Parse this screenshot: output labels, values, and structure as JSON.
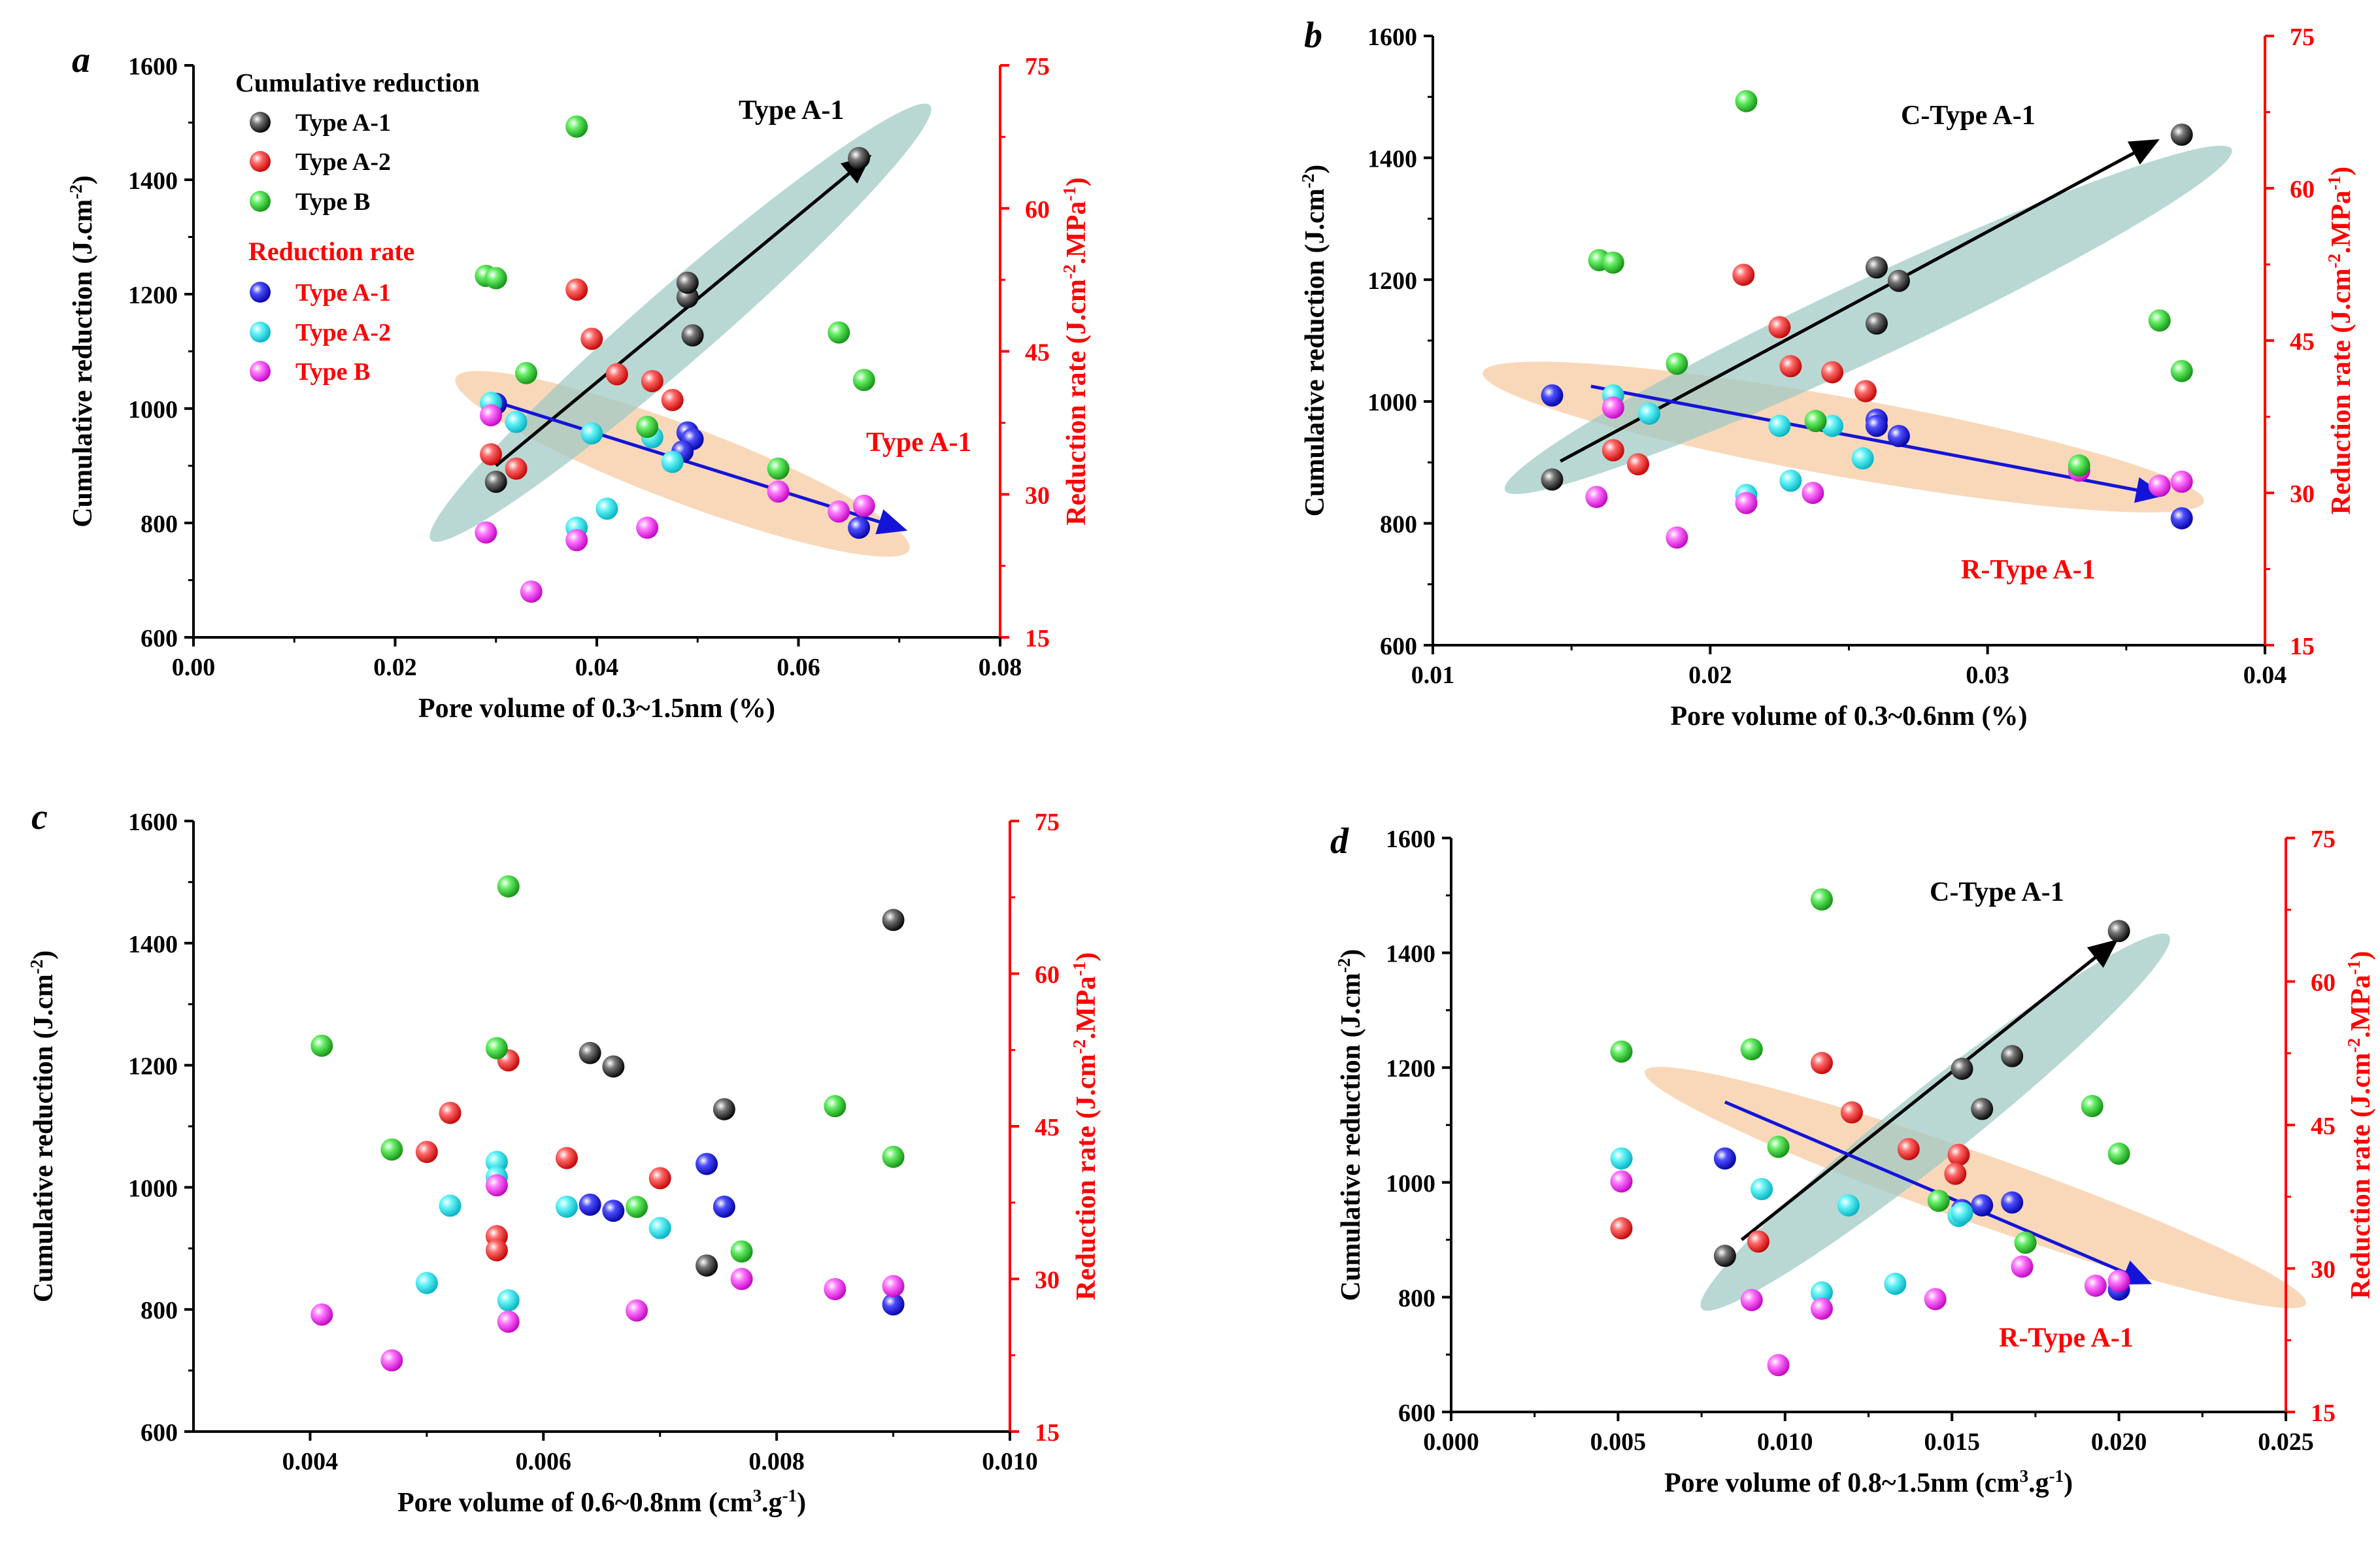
{
  "colors": {
    "typeA1": "#0a0a0a",
    "typeA2": "#ff1a1a",
    "typeB": "#22dd22",
    "rateA1": "#1010e0",
    "rateA2": "#12e8f0",
    "rateB": "#ff22ff",
    "right_axis": "#ff0000",
    "ellipse_c": "#9ec9c4",
    "ellipse_r": "#f6c9a0",
    "arrow_c": "#000000",
    "arrow_r": "#1414d8"
  },
  "legend": {
    "cumulative_title": "Cumulative reduction",
    "rate_title": "Reduction rate",
    "items": [
      "Type A-1",
      "Type A-2",
      "Type B",
      "Type A-1",
      "Type A-2",
      "Type B"
    ]
  },
  "chart_data": [
    {
      "type": "scatter",
      "panel": "a",
      "xlabel": "Pore volume of 0.3~1.5nm (%)",
      "ylabel": "Cumulative reduction (J.cm-2)",
      "ylabel2": "Reduction rate (J.cm-2.MPa-1)",
      "xlim": [
        0.0,
        0.08
      ],
      "xticks": [
        "0.00",
        "0.02",
        "0.04",
        "0.06",
        "0.08"
      ],
      "ylim": [
        600,
        1600
      ],
      "yticks": [
        600,
        800,
        1000,
        1200,
        1400,
        1600
      ],
      "y2lim": [
        15,
        75
      ],
      "y2ticks": [
        15,
        30,
        45,
        60,
        75
      ],
      "annotations": [
        {
          "text": "Type A-1",
          "color": "#000000"
        },
        {
          "text": "Type A-1",
          "color": "#ff0000"
        }
      ],
      "cumulative_series": [
        {
          "name": "Type A-1",
          "points": [
            [
              0.03,
              872
            ],
            [
              0.049,
              1195
            ],
            [
              0.049,
              1220
            ],
            [
              0.0495,
              1128
            ],
            [
              0.066,
              1438
            ]
          ]
        },
        {
          "name": "Type A-2",
          "points": [
            [
              0.0295,
              920
            ],
            [
              0.032,
              895
            ],
            [
              0.038,
              1208
            ],
            [
              0.0395,
              1122
            ],
            [
              0.042,
              1060
            ],
            [
              0.0455,
              1048
            ],
            [
              0.0475,
              1015
            ]
          ]
        },
        {
          "name": "Type B",
          "points": [
            [
              0.029,
              1232
            ],
            [
              0.03,
              1228
            ],
            [
              0.038,
              1493
            ],
            [
              0.033,
              1062
            ],
            [
              0.045,
              968
            ],
            [
              0.058,
              895
            ],
            [
              0.064,
              1133
            ],
            [
              0.0665,
              1050
            ]
          ]
        }
      ],
      "rate_series": [
        {
          "name": "Type A-1",
          "points": [
            [
              0.03,
              39.5
            ],
            [
              0.049,
              36.5
            ],
            [
              0.0495,
              35.8
            ],
            [
              0.0485,
              34.5
            ],
            [
              0.066,
              26.5
            ]
          ]
        },
        {
          "name": "Type A-2",
          "points": [
            [
              0.0295,
              39.6
            ],
            [
              0.032,
              37.6
            ],
            [
              0.0395,
              36.4
            ],
            [
              0.0455,
              36.0
            ],
            [
              0.0475,
              33.4
            ],
            [
              0.038,
              26.5
            ],
            [
              0.041,
              28.5
            ]
          ]
        },
        {
          "name": "Type B",
          "points": [
            [
              0.0295,
              38.3
            ],
            [
              0.029,
              26.0
            ],
            [
              0.0335,
              19.8
            ],
            [
              0.038,
              25.2
            ],
            [
              0.045,
              26.5
            ],
            [
              0.058,
              30.3
            ],
            [
              0.064,
              28.2
            ],
            [
              0.0665,
              28.8
            ]
          ]
        }
      ],
      "trend_c": {
        "from": [
          0.03,
          900
        ],
        "to": [
          0.067,
          1440
        ]
      },
      "trend_r": {
        "from": [
          0.03,
          39.7
        ],
        "to": [
          0.0705,
          26.3
        ]
      },
      "ellipse_c": {
        "cx": 0.0483,
        "cy": 1150,
        "rx": 0.04,
        "ry": 65,
        "angle_from": [
          0.0232,
          770
        ],
        "angle_to": [
          0.0727,
          1530
        ]
      },
      "ellipse_r": {
        "cx": 0.0485,
        "cy": 33.2,
        "rx": 0.028,
        "ry": 4.0,
        "angle_from": [
          0.026,
          42.0
        ],
        "angle_to": [
          0.071,
          24.0
        ]
      }
    },
    {
      "type": "scatter",
      "panel": "b",
      "xlabel": "Pore volume of 0.3~0.6nm (%)",
      "ylabel": "Cumulative reduction (J.cm-2)",
      "ylabel2": "Reduction rate (J.cm-2.MPa-1)",
      "xlim": [
        0.01,
        0.04
      ],
      "xticks": [
        "0.01",
        "0.02",
        "0.03",
        "0.04"
      ],
      "ylim": [
        600,
        1600
      ],
      "yticks": [
        600,
        800,
        1000,
        1200,
        1400,
        1600
      ],
      "y2lim": [
        15,
        75
      ],
      "y2ticks": [
        15,
        30,
        45,
        60,
        75
      ],
      "annotations": [
        {
          "text": "C-Type A-1",
          "color": "#000000"
        },
        {
          "text": "R-Type A-1",
          "color": "#ff0000"
        }
      ],
      "cumulative_series": [
        {
          "name": "Type A-1",
          "points": [
            [
              0.0143,
              872
            ],
            [
              0.026,
              1220
            ],
            [
              0.0268,
              1198
            ],
            [
              0.026,
              1128
            ],
            [
              0.037,
              1438
            ]
          ]
        },
        {
          "name": "Type A-2",
          "points": [
            [
              0.0165,
              920
            ],
            [
              0.0174,
              897
            ],
            [
              0.0212,
              1208
            ],
            [
              0.0225,
              1122
            ],
            [
              0.0229,
              1058
            ],
            [
              0.0244,
              1048
            ],
            [
              0.0256,
              1017
            ]
          ]
        },
        {
          "name": "Type B",
          "points": [
            [
              0.016,
              1232
            ],
            [
              0.0165,
              1228
            ],
            [
              0.0213,
              1493
            ],
            [
              0.0188,
              1062
            ],
            [
              0.0238,
              968
            ],
            [
              0.0333,
              895
            ],
            [
              0.0362,
              1133
            ],
            [
              0.037,
              1050
            ]
          ]
        }
      ],
      "rate_series": [
        {
          "name": "Type A-1",
          "points": [
            [
              0.0143,
              39.6
            ],
            [
              0.026,
              37.2
            ],
            [
              0.026,
              36.6
            ],
            [
              0.0268,
              35.6
            ],
            [
              0.037,
              27.5
            ]
          ]
        },
        {
          "name": "Type A-2",
          "points": [
            [
              0.0165,
              39.6
            ],
            [
              0.0178,
              37.8
            ],
            [
              0.0225,
              36.6
            ],
            [
              0.0244,
              36.6
            ],
            [
              0.0255,
              33.4
            ],
            [
              0.0213,
              29.8
            ],
            [
              0.0229,
              31.2
            ]
          ]
        },
        {
          "name": "Type B",
          "points": [
            [
              0.0165,
              38.4
            ],
            [
              0.0159,
              29.6
            ],
            [
              0.0188,
              25.6
            ],
            [
              0.0213,
              29.0
            ],
            [
              0.0237,
              30.0
            ],
            [
              0.0333,
              32.2
            ],
            [
              0.0362,
              30.7
            ],
            [
              0.037,
              31.1
            ]
          ]
        }
      ],
      "trend_c": {
        "from": [
          0.0146,
          902
        ],
        "to": [
          0.0361,
          1428
        ]
      },
      "trend_r": {
        "from": [
          0.0157,
          40.5
        ],
        "to": [
          0.0363,
          29.8
        ]
      },
      "ellipse_c": {
        "cx": 0.0257,
        "cy": 1134,
        "rx": 0.0158,
        "ry": 64,
        "angle_from": [
          0.0123,
          870
        ],
        "angle_to": [
          0.0385,
          1430
        ]
      },
      "ellipse_r": {
        "cx": 0.0248,
        "cy": 35.5,
        "rx": 0.0152,
        "ry": 3.9,
        "angle_from": [
          0.012,
          41.5
        ],
        "angle_to": [
          0.038,
          28.8
        ]
      }
    },
    {
      "type": "scatter",
      "panel": "c",
      "xlabel": "Pore volume of 0.6~0.8nm (cm3.g-1)",
      "ylabel": "Cumulative reduction (J.cm-2)",
      "ylabel2": "Reduction rate (J.cm-2.MPa-1)",
      "xlim": [
        0.003,
        0.01
      ],
      "xticks": [
        "0.004",
        "0.006",
        "0.008",
        "0.010"
      ],
      "ylim": [
        600,
        1600
      ],
      "yticks": [
        600,
        800,
        1000,
        1200,
        1400,
        1600
      ],
      "y2lim": [
        15,
        75
      ],
      "y2ticks": [
        15,
        30,
        45,
        60,
        75
      ],
      "annotations": [],
      "cumulative_series": [
        {
          "name": "Type A-1",
          "points": [
            [
              0.0064,
              1220
            ],
            [
              0.0066,
              1198
            ],
            [
              0.00755,
              1128
            ],
            [
              0.0074,
              872
            ],
            [
              0.009,
              1438
            ]
          ]
        },
        {
          "name": "Type A-2",
          "points": [
            [
              0.0052,
              1122
            ],
            [
              0.005,
              1058
            ],
            [
              0.0057,
              1208
            ],
            [
              0.0056,
              920
            ],
            [
              0.0056,
              897
            ],
            [
              0.0062,
              1048
            ],
            [
              0.007,
              1015
            ]
          ]
        },
        {
          "name": "Type B",
          "points": [
            [
              0.0041,
              1232
            ],
            [
              0.0056,
              1228
            ],
            [
              0.0057,
              1493
            ],
            [
              0.0047,
              1062
            ],
            [
              0.0068,
              968
            ],
            [
              0.0077,
              895
            ],
            [
              0.0085,
              1133
            ],
            [
              0.009,
              1050
            ]
          ]
        }
      ],
      "rate_series": [
        {
          "name": "Type A-1",
          "points": [
            [
              0.0064,
              37.3
            ],
            [
              0.0066,
              36.7
            ],
            [
              0.0074,
              41.3
            ],
            [
              0.00755,
              37.1
            ],
            [
              0.009,
              27.5
            ]
          ]
        },
        {
          "name": "Type A-2",
          "points": [
            [
              0.0056,
              41.5
            ],
            [
              0.0056,
              40.0
            ],
            [
              0.0052,
              37.2
            ],
            [
              0.0062,
              37.1
            ],
            [
              0.007,
              35.0
            ],
            [
              0.005,
              29.6
            ],
            [
              0.0057,
              27.9
            ]
          ]
        },
        {
          "name": "Type B",
          "points": [
            [
              0.0056,
              39.2
            ],
            [
              0.0041,
              26.5
            ],
            [
              0.0047,
              22.0
            ],
            [
              0.0057,
              25.8
            ],
            [
              0.0068,
              26.9
            ],
            [
              0.0077,
              30.0
            ],
            [
              0.0085,
              29.0
            ],
            [
              0.009,
              29.3
            ]
          ]
        }
      ]
    },
    {
      "type": "scatter",
      "panel": "d",
      "xlabel": "Pore volume of 0.8~1.5nm (cm3.g-1)",
      "ylabel": "Cumulative reduction (J.cm-2)",
      "ylabel2": "Reduction rate (J.cm-2.MPa-1)",
      "xlim": [
        0.0,
        0.025
      ],
      "xticks": [
        "0.000",
        "0.005",
        "0.010",
        "0.015",
        "0.020",
        "0.025"
      ],
      "ylim": [
        600,
        1600
      ],
      "yticks": [
        600,
        800,
        1000,
        1200,
        1400,
        1600
      ],
      "y2lim": [
        15,
        75
      ],
      "y2ticks": [
        15,
        30,
        45,
        60,
        75
      ],
      "annotations": [
        {
          "text": "C-Type A-1",
          "color": "#000000"
        },
        {
          "text": "R-Type A-1",
          "color": "#ff0000"
        }
      ],
      "cumulative_series": [
        {
          "name": "Type A-1",
          "points": [
            [
              0.0082,
              872
            ],
            [
              0.0153,
              1198
            ],
            [
              0.0168,
              1220
            ],
            [
              0.0159,
              1128
            ],
            [
              0.02,
              1438
            ]
          ]
        },
        {
          "name": "Type A-2",
          "points": [
            [
              0.0051,
              920
            ],
            [
              0.0092,
              897
            ],
            [
              0.0111,
              1208
            ],
            [
              0.012,
              1122
            ],
            [
              0.0137,
              1058
            ],
            [
              0.0152,
              1048
            ],
            [
              0.0151,
              1015
            ]
          ]
        },
        {
          "name": "Type B",
          "points": [
            [
              0.0051,
              1228
            ],
            [
              0.009,
              1232
            ],
            [
              0.0111,
              1493
            ],
            [
              0.0098,
              1062
            ],
            [
              0.0146,
              968
            ],
            [
              0.0172,
              895
            ],
            [
              0.0192,
              1133
            ],
            [
              0.02,
              1050
            ]
          ]
        }
      ],
      "rate_series": [
        {
          "name": "Type A-1",
          "points": [
            [
              0.0082,
              41.5
            ],
            [
              0.0153,
              36.1
            ],
            [
              0.0159,
              36.6
            ],
            [
              0.0168,
              36.9
            ],
            [
              0.02,
              27.8
            ]
          ]
        },
        {
          "name": "Type A-2",
          "points": [
            [
              0.0051,
              41.5
            ],
            [
              0.0093,
              38.3
            ],
            [
              0.0119,
              36.6
            ],
            [
              0.0152,
              35.5
            ],
            [
              0.0133,
              28.4
            ],
            [
              0.0111,
              27.5
            ],
            [
              0.0153,
              35.8
            ]
          ]
        },
        {
          "name": "Type B",
          "points": [
            [
              0.0051,
              39.1
            ],
            [
              0.009,
              26.7
            ],
            [
              0.0098,
              19.9
            ],
            [
              0.0111,
              25.8
            ],
            [
              0.0145,
              26.8
            ],
            [
              0.0171,
              30.2
            ],
            [
              0.0193,
              28.2
            ],
            [
              0.02,
              28.7
            ]
          ]
        }
      ],
      "trend_c": {
        "from": [
          0.0087,
          900
        ],
        "to": [
          0.0199,
          1420
        ]
      },
      "trend_r": {
        "from": [
          0.0082,
          1140
        ],
        "to": [
          0.0209,
          825
        ]
      },
      "ellipse_c": {
        "cx": 0.0145,
        "cy": 1105,
        "rx": 0.0094,
        "ry": 62,
        "angle_from": [
          0.0075,
          830
        ],
        "angle_to": [
          0.0215,
          1480
        ]
      },
      "ellipse_r": {
        "cx": 0.0157,
        "cy": 991,
        "rx": 0.0098,
        "ry": 60,
        "angle_from": [
          0.0058,
          1185
        ],
        "angle_to": [
          0.0256,
          780
        ]
      }
    }
  ]
}
